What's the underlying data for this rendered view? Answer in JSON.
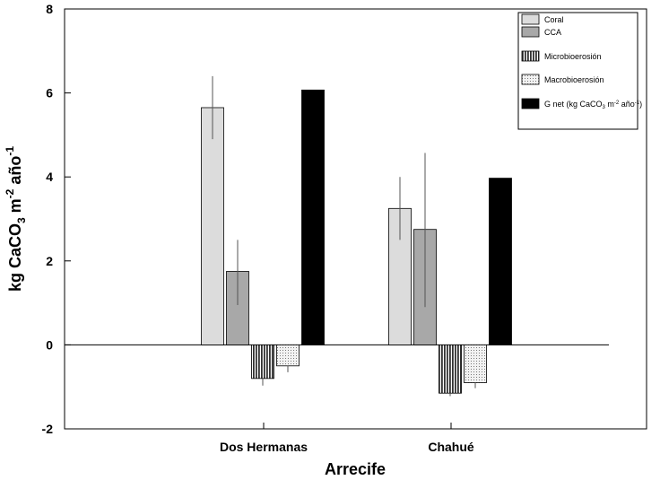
{
  "chart_data": {
    "type": "bar",
    "title": "",
    "xlabel": "Arrecife",
    "ylabel": {
      "main": "kg CaCO",
      "sub1": "3",
      "mid": " m",
      "sup1": "-2",
      "mid2": " año",
      "sup2": "-1"
    },
    "ylim": [
      -2,
      8
    ],
    "yticks": [
      "-2",
      "0",
      "2",
      "4",
      "6",
      "8"
    ],
    "categories": [
      "Dos Hermanas",
      "Chahué"
    ],
    "series": [
      {
        "name": "Coral",
        "color": "#dcdcdc",
        "pattern": "solid",
        "values": [
          5.65,
          3.25
        ],
        "err_low": [
          4.9,
          2.5
        ],
        "err_high": [
          6.4,
          4.0
        ]
      },
      {
        "name": "CCA",
        "color": "#a8a8a8",
        "pattern": "solid",
        "values": [
          1.75,
          2.75
        ],
        "err_low": [
          0.95,
          0.9
        ],
        "err_high": [
          2.5,
          4.57
        ]
      },
      {
        "name": "Microbioerosión",
        "color": "#555555",
        "pattern": "vertical-stripes",
        "values": [
          -0.8,
          -1.15
        ],
        "err_low": [
          -0.97,
          -1.22
        ],
        "err_high": [
          -0.8,
          -1.15
        ]
      },
      {
        "name": "Macrobioerosión",
        "color": "#e6e6e6",
        "pattern": "dots",
        "values": [
          -0.5,
          -0.9
        ],
        "err_low": [
          -0.65,
          -1.03
        ],
        "err_high": [
          -0.5,
          -0.9
        ]
      },
      {
        "name": "G net (kg CaCO3 m-2 año-1)",
        "color": "#000000",
        "pattern": "solid",
        "values": [
          6.07,
          3.97
        ],
        "err_low": null,
        "err_high": null
      }
    ],
    "legend": {
      "placement": "top-right",
      "items": [
        {
          "parts": [
            {
              "t": "Coral"
            }
          ]
        },
        {
          "parts": [
            {
              "t": "CCA"
            }
          ]
        },
        {
          "parts": [
            {
              "t": "Microbioerosión"
            }
          ]
        },
        {
          "parts": [
            {
              "t": "Macrobioerosión"
            }
          ]
        },
        {
          "parts": [
            {
              "t": "G net (kg CaCO"
            },
            {
              "t": "3",
              "s": "sub"
            },
            {
              "t": " m"
            },
            {
              "t": "-2",
              "s": "sup"
            },
            {
              "t": " año"
            },
            {
              "t": "-1",
              "s": "sup"
            },
            {
              "t": ")"
            }
          ]
        }
      ]
    },
    "grid": false
  }
}
